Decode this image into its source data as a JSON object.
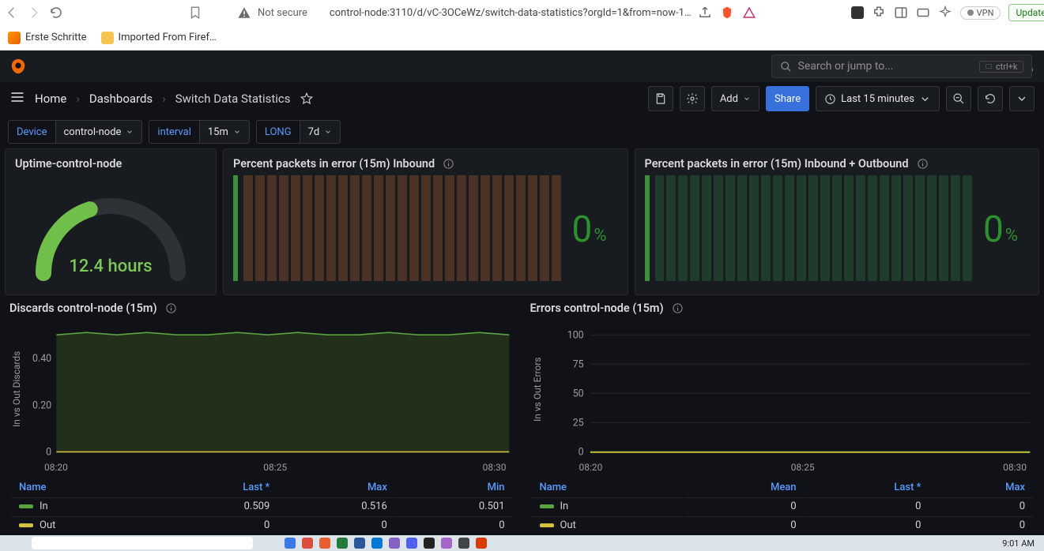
{
  "browser": {
    "security_label": "Not secure",
    "url": "control-node:3110/d/vC-3OCeWz/switch-data-statistics?orgId=1&from=now-1…",
    "vpn_label": "VPN",
    "update_label": "Update",
    "bookmarks": {
      "first": "Erste Schritte",
      "imported": "Imported From Firef…"
    }
  },
  "grafana": {
    "search_placeholder": "Search or jump to...",
    "search_kbd": "ctrl+k",
    "plus_label": "",
    "breadcrumb": {
      "home": "Home",
      "dash": "Dashboards",
      "page": "Switch Data Statistics"
    },
    "buttons": {
      "add": "Add",
      "share": "Share",
      "time": "Last 15 minutes"
    },
    "vars": {
      "device_label": "Device",
      "device_value": "control-node",
      "interval_label": "interval",
      "interval_value": "15m",
      "long_label": "LONG",
      "long_value": "7d"
    }
  },
  "panels": {
    "uptime": {
      "title": "Uptime-control-node",
      "value": "12.4 hours",
      "gauge_pct": 40,
      "colors": {
        "arc_fg": "#6fbf4a",
        "arc_bg": "#2e3136",
        "text": "#7cc95a"
      }
    },
    "perr_in": {
      "title": "Percent packets in error (15m) Inbound",
      "value": "0",
      "unit": "%",
      "bar_fill": "#4a3324",
      "bar_lead": "#3e8f3e",
      "value_color": "#2e8f2e",
      "bar_count": 27
    },
    "perr_io": {
      "title": "Percent packets in error (15m) Inbound + Outbound",
      "value": "0",
      "unit": "%",
      "bar_fill": "#1e3b2b",
      "bar_lead": "#3e8f3e",
      "value_color": "#2e8f2e",
      "bar_count": 27
    },
    "discards": {
      "title": "Discards control-node (15m)",
      "type": "line",
      "ylabel": "In vs Out Discards",
      "yticks": [
        "0",
        "0.20",
        "0.40"
      ],
      "ylim": [
        0,
        0.55
      ],
      "xticks": [
        "08:20",
        "08:25",
        "08:30"
      ],
      "series": [
        {
          "name": "In",
          "color": "#5aa43e",
          "fill": "#23331c",
          "values": [
            0.5,
            0.51,
            0.5,
            0.51,
            0.5,
            0.5,
            0.51,
            0.5,
            0.51,
            0.5,
            0.5,
            0.51,
            0.5,
            0.5,
            0.51,
            0.5
          ],
          "last": "0.509",
          "max": "0.516",
          "min": "0.501"
        },
        {
          "name": "Out",
          "color": "#d6c23a",
          "fill": "none",
          "values": [
            0,
            0,
            0,
            0,
            0,
            0,
            0,
            0,
            0,
            0,
            0,
            0,
            0,
            0,
            0,
            0
          ],
          "last": "0",
          "max": "0",
          "min": "0"
        }
      ],
      "columns": [
        "Name",
        "Last *",
        "Max",
        "Min"
      ]
    },
    "errors": {
      "title": "Errors control-node (15m)",
      "type": "line",
      "ylabel": "In vs Out Errors",
      "yticks": [
        "0",
        "25",
        "50",
        "75",
        "100"
      ],
      "ylim": [
        0,
        110
      ],
      "xticks": [
        "08:20",
        "08:25",
        "08:30"
      ],
      "series": [
        {
          "name": "In",
          "color": "#5aa43e",
          "mean": "0",
          "last": "0",
          "max": "0"
        },
        {
          "name": "Out",
          "color": "#d6c23a",
          "mean": "0",
          "last": "0",
          "max": "0"
        }
      ],
      "columns": [
        "Name",
        "Mean",
        "Last *",
        "Max"
      ]
    }
  },
  "taskbar": {
    "clock": "9:01 AM"
  },
  "colors": {
    "panel_bg": "#181b1f",
    "page_bg": "#111217",
    "border": "#33373d",
    "link": "#5a9bff",
    "text": "#d9dadd"
  }
}
